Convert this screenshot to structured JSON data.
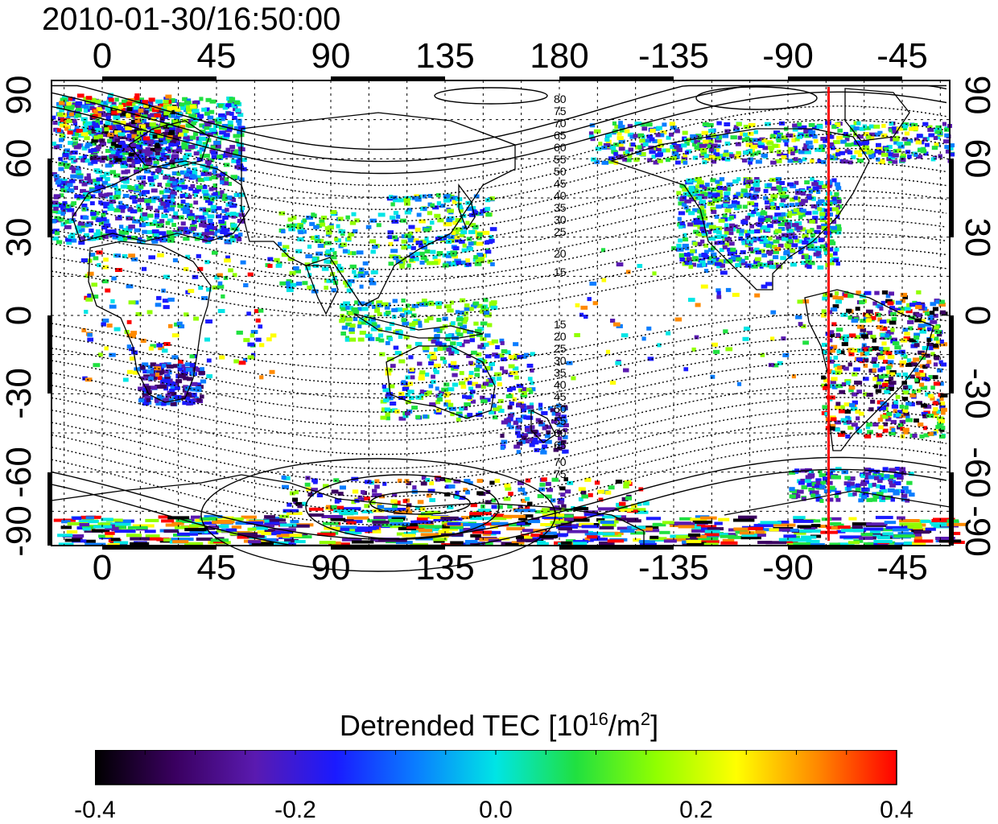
{
  "title": "2010-01-30/16:50:00",
  "top_lon_ticks": [
    "0",
    "45",
    "90",
    "135",
    "180",
    "-135",
    "-90",
    "-45"
  ],
  "bottom_lon_ticks": [
    "0",
    "45",
    "90",
    "135",
    "180",
    "-135",
    "-90",
    "-45"
  ],
  "left_lat_ticks": [
    "90",
    "60",
    "30",
    "0",
    "-30",
    "-60",
    "-90"
  ],
  "right_lat_ticks": [
    "90",
    "60",
    "30",
    "0",
    "-30",
    "-60",
    "-90"
  ],
  "contour_labels_north": [
    "80",
    "75",
    "70",
    "65",
    "60",
    "55",
    "50",
    "45",
    "40",
    "35",
    "30",
    "25",
    "20",
    "15"
  ],
  "contour_labels_south": [
    "15",
    "20",
    "25",
    "30",
    "35",
    "40",
    "45",
    "50",
    "55",
    "60",
    "65",
    "70",
    "75"
  ],
  "terminator_longitude": -74,
  "colors": {
    "terminator": "#ff0000",
    "coastline": "#000000",
    "grid": "#000000"
  },
  "colorbar": {
    "title_prefix": "Detrended TEC  [10",
    "title_exp": "16",
    "title_mid": "/m",
    "title_exp2": "2",
    "title_suffix": "]",
    "min": -0.4,
    "max": 0.4,
    "tick_labels": [
      "-0.4",
      "-0.2",
      "0.0",
      "0.2",
      "0.4"
    ],
    "palette": [
      "#000000",
      "#3a0060",
      "#5a1ab0",
      "#1a1aff",
      "#0a7dff",
      "#00e5e5",
      "#20e040",
      "#90ff00",
      "#ffff00",
      "#ff8a00",
      "#ff0000"
    ]
  }
}
